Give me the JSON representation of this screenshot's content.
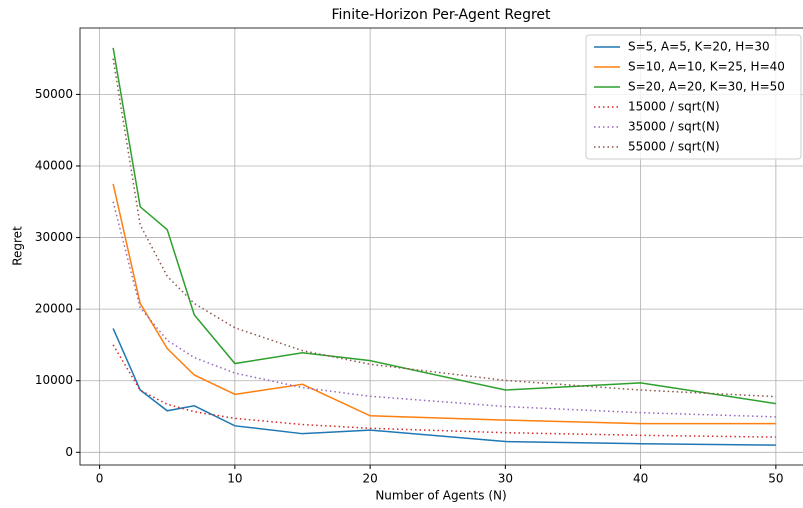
{
  "chart_data": {
    "type": "line",
    "title": "Finite-Horizon Per-Agent Regret",
    "x_label": "Number of Agents (N)",
    "y_label": "Regret",
    "x": [
      1,
      3,
      5,
      7,
      10,
      15,
      20,
      30,
      40,
      50
    ],
    "series": [
      {
        "name": "S=5, A=5, K=20, H=30",
        "color": "#1f77b4",
        "linestyle": "solid",
        "values": [
          17300,
          8700,
          5800,
          6500,
          3700,
          2600,
          3100,
          1500,
          1200,
          1000
        ]
      },
      {
        "name": "S=10, A=10, K=25, H=40",
        "color": "#ff7f0e",
        "linestyle": "solid",
        "values": [
          37500,
          20800,
          14500,
          10800,
          8100,
          9500,
          5100,
          4500,
          4000,
          4000
        ]
      },
      {
        "name": "S=20, A=20, K=30, H=50",
        "color": "#2ca02c",
        "linestyle": "solid",
        "values": [
          56500,
          34300,
          31100,
          19200,
          12400,
          13900,
          12800,
          8700,
          9700,
          6800
        ]
      },
      {
        "name": "15000 / sqrt(N)",
        "color": "#d62728",
        "linestyle": "dotted",
        "values": [
          15000,
          8660,
          6708,
          5669,
          4743,
          3873,
          3354,
          2739,
          2372,
          2121
        ]
      },
      {
        "name": "35000 / sqrt(N)",
        "color": "#9467bd",
        "linestyle": "dotted",
        "values": [
          35000,
          20207,
          15652,
          13229,
          11068,
          9037,
          7826,
          6390,
          5534,
          4950
        ]
      },
      {
        "name": "55000 / sqrt(N)",
        "color": "#8c564b",
        "linestyle": "dotted",
        "values": [
          55000,
          31754,
          24597,
          20788,
          17393,
          14201,
          12298,
          10042,
          8696,
          7778
        ]
      }
    ],
    "xlim": [
      -1.45,
      52.45
    ],
    "ylim": [
      -1775,
      59275
    ],
    "xticks": [
      0,
      10,
      20,
      30,
      40,
      50
    ],
    "yticks": [
      0,
      10000,
      20000,
      30000,
      40000,
      50000
    ],
    "grid": true,
    "legend": "upper right"
  }
}
